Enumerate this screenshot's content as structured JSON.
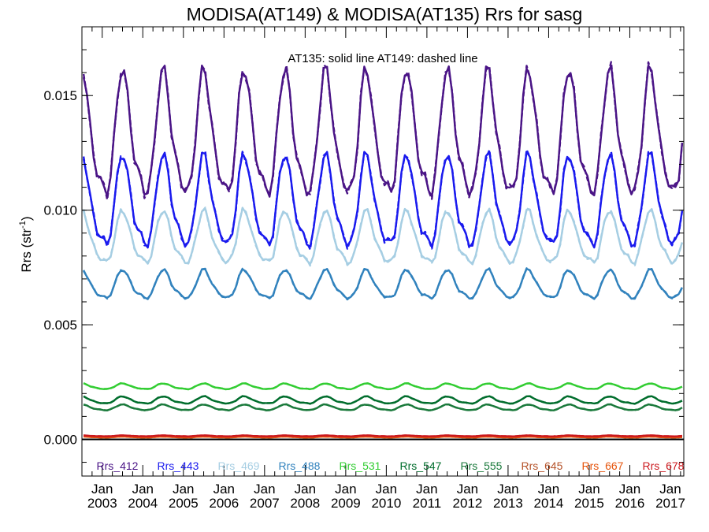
{
  "chart_data": {
    "type": "line",
    "title": "MODISA(AT149) & MODISA(AT135)  Rrs for sasg",
    "annotation": "AT135: solid line   AT149: dashed line",
    "ylabel": "Rrs (str",
    "ylabel_sup": "-1",
    "ylabel_close": ")",
    "ylim": [
      -0.0016,
      0.018
    ],
    "yticks": [
      "0.000",
      "0.005",
      "0.010",
      "0.015"
    ],
    "xlim": [
      2002.5,
      2017.33
    ],
    "xticks": [
      {
        "top": "Jan",
        "bottom": "2003"
      },
      {
        "top": "Jan",
        "bottom": "2004"
      },
      {
        "top": "Jan",
        "bottom": "2005"
      },
      {
        "top": "Jan",
        "bottom": "2006"
      },
      {
        "top": "Jan",
        "bottom": "2007"
      },
      {
        "top": "Jan",
        "bottom": "2008"
      },
      {
        "top": "Jan",
        "bottom": "2009"
      },
      {
        "top": "Jan",
        "bottom": "2010"
      },
      {
        "top": "Jan",
        "bottom": "2011"
      },
      {
        "top": "Jan",
        "bottom": "2012"
      },
      {
        "top": "Jan",
        "bottom": "2013"
      },
      {
        "top": "Jan",
        "bottom": "2014"
      },
      {
        "top": "Jan",
        "bottom": "2015"
      },
      {
        "top": "Jan",
        "bottom": "2016"
      },
      {
        "top": "Jan",
        "bottom": "2017"
      }
    ],
    "line_styles": {
      "solid": "AT135",
      "dashed": "AT149"
    },
    "series": [
      {
        "name": "Rrs_412",
        "color": "#4a1486",
        "mean": 0.0131,
        "amp": 0.0026,
        "phase": 0.02
      },
      {
        "name": "Rrs_443",
        "color": "#1a1aee",
        "mean": 0.0102,
        "amp": 0.0019,
        "phase": 0.02
      },
      {
        "name": "Rrs_469",
        "color": "#a6cee3",
        "mean": 0.0087,
        "amp": 0.0011,
        "phase": 0.02
      },
      {
        "name": "Rrs_488",
        "color": "#3182bd",
        "mean": 0.0067,
        "amp": 0.0006,
        "phase": 0.02
      },
      {
        "name": "Rrs_531",
        "color": "#32cd32",
        "mean": 0.0023,
        "amp": 0.00012,
        "phase": 0.02
      },
      {
        "name": "Rrs_547",
        "color": "#006d2c",
        "mean": 0.0017,
        "amp": 0.00015,
        "phase": 0.02
      },
      {
        "name": "Rrs_555",
        "color": "#1b7a3c",
        "mean": 0.00138,
        "amp": 0.00012,
        "phase": 0.02
      },
      {
        "name": "Rrs_645",
        "color": "#b5532a",
        "mean": 0.00012,
        "amp": 2e-05,
        "phase": 0.02
      },
      {
        "name": "Rrs_667",
        "color": "#e6550d",
        "mean": 0.0001,
        "amp": 2e-05,
        "phase": 0.02
      },
      {
        "name": "Rrs_678",
        "color": "#cb181d",
        "mean": 0.00015,
        "amp": 2e-05,
        "phase": 0.02
      }
    ]
  }
}
